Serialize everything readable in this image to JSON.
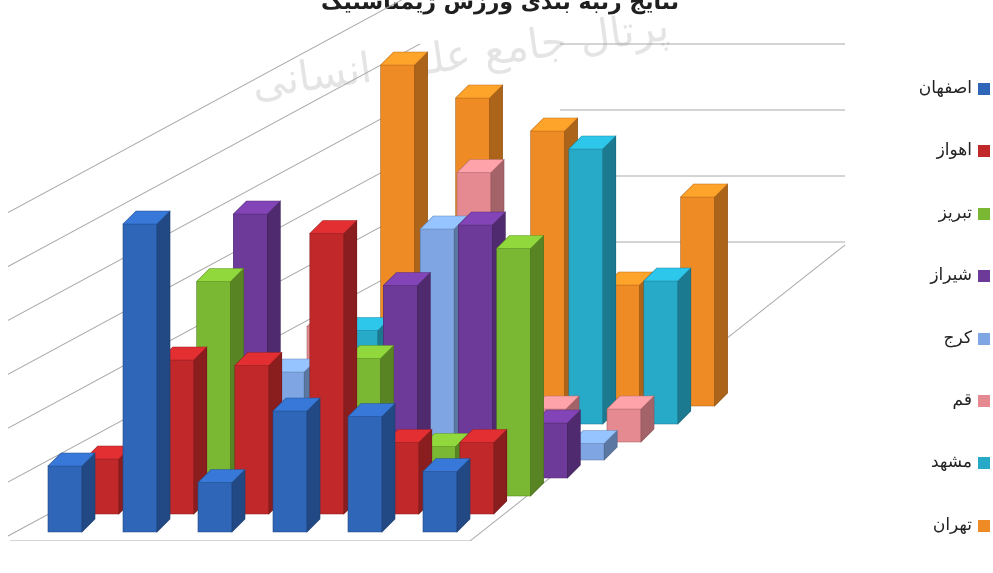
{
  "title": "نتایج رتبه بندی ورزش ژیمناستیک",
  "watermark": "پرتال جامع علوم انسانی",
  "chart_data": {
    "type": "bar",
    "categories": [
      "",
      "",
      "",
      "",
      "",
      ""
    ],
    "series": [
      {
        "name": "اصفهان",
        "color": "#2f66b8",
        "values": [
          1.2,
          5.6,
          0.9,
          2.2,
          2.1,
          1.1
        ]
      },
      {
        "name": "اهواز",
        "color": "#c0282a",
        "values": [
          1.0,
          2.8,
          2.7,
          5.1,
          1.3,
          1.3
        ]
      },
      {
        "name": "تبریز",
        "color": "#7ab732",
        "values": [
          0.2,
          3.9,
          0.6,
          2.5,
          0.9,
          4.5
        ]
      },
      {
        "name": "شیراز",
        "color": "#6e3a9a",
        "values": [
          0.3,
          4.8,
          0.3,
          3.5,
          4.6,
          1.0
        ]
      },
      {
        "name": "کرج",
        "color": "#7fa6e3",
        "values": [
          0.2,
          1.6,
          0.8,
          4.2,
          0.4,
          0.3
        ]
      },
      {
        "name": "قم",
        "color": "#e48a90",
        "values": [
          0.3,
          2.1,
          0.3,
          4.9,
          0.6,
          0.6
        ]
      },
      {
        "name": "مشهد",
        "color": "#27a9c8",
        "values": [
          0.4,
          1.7,
          2.4,
          3.0,
          5.0,
          2.6
        ]
      },
      {
        "name": "تهران",
        "color": "#ef8b24",
        "values": [
          0.5,
          6.2,
          5.6,
          5.0,
          2.2,
          3.8
        ]
      }
    ],
    "ylim": [
      0,
      6
    ],
    "grid": true,
    "legend_position": "right"
  }
}
